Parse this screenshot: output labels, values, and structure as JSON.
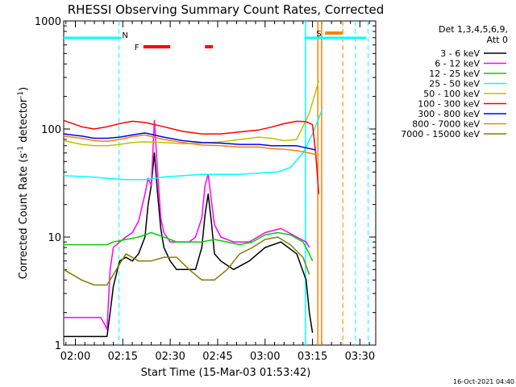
{
  "chart_data": {
    "type": "line",
    "title": "RHESSI Observing Summary Count Rates, Corrected",
    "xlabel": "Start Time (15-Mar-03 01:53:42)",
    "ylabel": "Corrected Count Rate (s",
    "ylabel_sup1": "-1",
    "ylabel_mid": " detector",
    "ylabel_sup2": "-1",
    "ylabel_end": ")",
    "y_scale": "log",
    "ylim": [
      1,
      1000
    ],
    "y_ticks": [
      {
        "value": 1,
        "label": "1"
      },
      {
        "value": 10,
        "label": "10"
      },
      {
        "value": 100,
        "label": "100"
      },
      {
        "value": 1000,
        "label": "1000"
      }
    ],
    "xlim_minutes": [
      -3.7,
      95
    ],
    "x_ticks": [
      {
        "t": 0,
        "label": "02:00"
      },
      {
        "t": 15,
        "label": "02:15"
      },
      {
        "t": 30,
        "label": "02:30"
      },
      {
        "t": 45,
        "label": "02:45"
      },
      {
        "t": 60,
        "label": "03:00"
      },
      {
        "t": 75,
        "label": "03:15"
      },
      {
        "t": 90,
        "label": "03:30"
      }
    ],
    "legend": {
      "header_line1": "Det 1,3,4,5,6,9,",
      "header_line2": "Att 0",
      "placement": "right"
    },
    "series": [
      {
        "name": "3 - 6 keV",
        "color": "#000000",
        "points": [
          [
            -4,
            1.2
          ],
          [
            10,
            1.2
          ],
          [
            11,
            2.0
          ],
          [
            12,
            3.5
          ],
          [
            14,
            6
          ],
          [
            16,
            6.5
          ],
          [
            18,
            6
          ],
          [
            20,
            7
          ],
          [
            22,
            10
          ],
          [
            23,
            20
          ],
          [
            24,
            30
          ],
          [
            25,
            60
          ],
          [
            26,
            25
          ],
          [
            27,
            12
          ],
          [
            28,
            8
          ],
          [
            30,
            6
          ],
          [
            32,
            5
          ],
          [
            35,
            5
          ],
          [
            38,
            5
          ],
          [
            40,
            8
          ],
          [
            41,
            16
          ],
          [
            42,
            25
          ],
          [
            43,
            14
          ],
          [
            44,
            7
          ],
          [
            46,
            6
          ],
          [
            50,
            5
          ],
          [
            55,
            6
          ],
          [
            60,
            8
          ],
          [
            65,
            9
          ],
          [
            70,
            7
          ],
          [
            73,
            4
          ],
          [
            74,
            2
          ],
          [
            75,
            1.3
          ]
        ]
      },
      {
        "name": "6 - 12 keV",
        "color": "#ff00ff",
        "points": [
          [
            -4,
            1.8
          ],
          [
            8,
            1.8
          ],
          [
            9,
            1.6
          ],
          [
            10,
            1.4
          ],
          [
            11,
            5
          ],
          [
            12,
            8
          ],
          [
            14,
            9
          ],
          [
            16,
            10
          ],
          [
            18,
            11
          ],
          [
            20,
            14
          ],
          [
            22,
            25
          ],
          [
            23,
            35
          ],
          [
            24,
            30
          ],
          [
            25,
            120
          ],
          [
            26,
            40
          ],
          [
            27,
            15
          ],
          [
            28,
            11
          ],
          [
            30,
            9
          ],
          [
            33,
            9
          ],
          [
            36,
            9
          ],
          [
            38,
            10
          ],
          [
            40,
            15
          ],
          [
            41,
            30
          ],
          [
            42,
            38
          ],
          [
            43,
            22
          ],
          [
            44,
            13
          ],
          [
            46,
            10
          ],
          [
            50,
            9
          ],
          [
            55,
            9
          ],
          [
            60,
            11
          ],
          [
            65,
            12
          ],
          [
            70,
            10
          ],
          [
            73,
            9
          ],
          [
            74,
            8
          ]
        ]
      },
      {
        "name": "12 - 25 keV",
        "color": "#00d000",
        "points": [
          [
            -4,
            8.5
          ],
          [
            5,
            8.5
          ],
          [
            10,
            8.5
          ],
          [
            12,
            9
          ],
          [
            16,
            9.5
          ],
          [
            20,
            10
          ],
          [
            24,
            11
          ],
          [
            28,
            10
          ],
          [
            32,
            9
          ],
          [
            36,
            9
          ],
          [
            40,
            9
          ],
          [
            44,
            9.5
          ],
          [
            48,
            9
          ],
          [
            52,
            8.5
          ],
          [
            56,
            9
          ],
          [
            60,
            10.5
          ],
          [
            64,
            11
          ],
          [
            68,
            10.5
          ],
          [
            72,
            9
          ],
          [
            74,
            7
          ],
          [
            75,
            6
          ]
        ]
      },
      {
        "name": "25 - 50 keV",
        "color": "#00ffff",
        "points": [
          [
            -4,
            37
          ],
          [
            5,
            36
          ],
          [
            10,
            35
          ],
          [
            16,
            34
          ],
          [
            22,
            34
          ],
          [
            28,
            36
          ],
          [
            34,
            37
          ],
          [
            40,
            38
          ],
          [
            46,
            38
          ],
          [
            52,
            38
          ],
          [
            58,
            39
          ],
          [
            64,
            40
          ],
          [
            68,
            44
          ],
          [
            72,
            60
          ],
          [
            75,
            90
          ],
          [
            78,
            150
          ]
        ]
      },
      {
        "name": "50 - 100 keV",
        "color": "#c0c000",
        "points": [
          [
            -4,
            78
          ],
          [
            2,
            72
          ],
          [
            6,
            70
          ],
          [
            10,
            70
          ],
          [
            14,
            72
          ],
          [
            18,
            75
          ],
          [
            22,
            76
          ],
          [
            28,
            75
          ],
          [
            34,
            73
          ],
          [
            40,
            74
          ],
          [
            46,
            76
          ],
          [
            52,
            80
          ],
          [
            58,
            84
          ],
          [
            62,
            82
          ],
          [
            66,
            78
          ],
          [
            70,
            80
          ],
          [
            74,
            140
          ],
          [
            77,
            280
          ]
        ]
      },
      {
        "name": "100 - 300 keV",
        "color": "#ff0000",
        "points": [
          [
            -4,
            120
          ],
          [
            2,
            105
          ],
          [
            6,
            100
          ],
          [
            10,
            105
          ],
          [
            14,
            112
          ],
          [
            18,
            118
          ],
          [
            22,
            115
          ],
          [
            28,
            105
          ],
          [
            34,
            95
          ],
          [
            40,
            90
          ],
          [
            46,
            90
          ],
          [
            52,
            94
          ],
          [
            58,
            98
          ],
          [
            62,
            104
          ],
          [
            66,
            112
          ],
          [
            70,
            118
          ],
          [
            73,
            117
          ],
          [
            75,
            110
          ],
          [
            76,
            60
          ],
          [
            77,
            25
          ]
        ]
      },
      {
        "name": "300 - 800 keV",
        "color": "#0000ff",
        "points": [
          [
            -4,
            90
          ],
          [
            2,
            86
          ],
          [
            6,
            82
          ],
          [
            10,
            82
          ],
          [
            14,
            84
          ],
          [
            18,
            88
          ],
          [
            22,
            92
          ],
          [
            28,
            84
          ],
          [
            34,
            78
          ],
          [
            40,
            75
          ],
          [
            46,
            74
          ],
          [
            52,
            72
          ],
          [
            58,
            72
          ],
          [
            62,
            70
          ],
          [
            66,
            70
          ],
          [
            70,
            70
          ],
          [
            74,
            66
          ],
          [
            76,
            64
          ]
        ]
      },
      {
        "name": "800 - 7000 keV",
        "color": "#ff8000",
        "points": [
          [
            -4,
            86
          ],
          [
            2,
            82
          ],
          [
            6,
            78
          ],
          [
            10,
            77
          ],
          [
            14,
            80
          ],
          [
            18,
            85
          ],
          [
            22,
            88
          ],
          [
            28,
            80
          ],
          [
            34,
            75
          ],
          [
            40,
            71
          ],
          [
            46,
            70
          ],
          [
            52,
            68
          ],
          [
            58,
            68
          ],
          [
            62,
            66
          ],
          [
            66,
            65
          ],
          [
            70,
            63
          ],
          [
            74,
            60
          ],
          [
            76,
            58
          ]
        ]
      },
      {
        "name": "7000 - 15000 keV",
        "color": "#808000",
        "points": [
          [
            -4,
            5
          ],
          [
            2,
            4
          ],
          [
            6,
            3.6
          ],
          [
            10,
            3.6
          ],
          [
            12,
            4.5
          ],
          [
            16,
            7
          ],
          [
            20,
            6
          ],
          [
            24,
            6
          ],
          [
            28,
            6.5
          ],
          [
            32,
            6.5
          ],
          [
            36,
            5
          ],
          [
            40,
            4
          ],
          [
            44,
            4
          ],
          [
            48,
            5
          ],
          [
            52,
            7
          ],
          [
            56,
            8
          ],
          [
            60,
            9.5
          ],
          [
            64,
            10
          ],
          [
            68,
            8.5
          ],
          [
            72,
            6.5
          ],
          [
            74,
            4.5
          ]
        ]
      }
    ],
    "annotations": {
      "N_label": "N",
      "F_label": "F",
      "S_label": "S",
      "flags": [
        {
          "label_key": "N",
          "color": "#00ffff",
          "line_t": [
            -4,
            14.5
          ]
        },
        {
          "label_key": "N",
          "color": "#00ffff",
          "line_t": [
            72.5,
            92
          ]
        },
        {
          "label_key": "F",
          "color": "#ff0000",
          "bars_t": [
            [
              21.5,
              30
            ],
            [
              41,
              43.5
            ]
          ]
        },
        {
          "label_key": "S",
          "color": "#ff8000",
          "bars_t": [
            [
              79,
              84.5
            ]
          ]
        }
      ],
      "vertical_lines": [
        {
          "t": 13.8,
          "color": "#00ffff",
          "style": "dashed"
        },
        {
          "t": 72.8,
          "color": "#00ffff",
          "style": "solid"
        },
        {
          "t": 76.7,
          "color": "#ff8000",
          "style": "solid"
        },
        {
          "t": 77.9,
          "color": "#ff8000",
          "style": "solid"
        },
        {
          "t": 84.6,
          "color": "#ff8000",
          "style": "dashed"
        },
        {
          "t": 88.6,
          "color": "#00ffff",
          "style": "dashed"
        },
        {
          "t": 92.6,
          "color": "#00ffff",
          "style": "dashed"
        }
      ]
    },
    "timestamp": "16-Oct-2021 04:40"
  }
}
